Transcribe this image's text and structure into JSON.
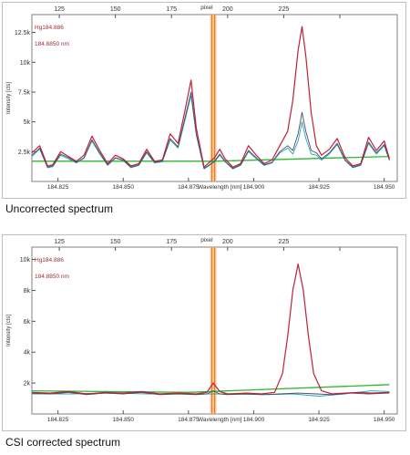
{
  "colors": {
    "background": "#ffffff",
    "frame": "#808080",
    "measured": "#c0203a",
    "reference": "#444e66",
    "reference2": "#2aa3b8",
    "baseline": "#2eb82e",
    "marker_fill": "#f7c090",
    "marker_line": "#e07a18",
    "legend_text": "#a03030"
  },
  "chart_data": [
    {
      "type": "line",
      "caption": "Uncorrected spectrum",
      "xlabel": "Wavelength [nm]",
      "ylabel": "Intensity [cts]",
      "x2label": "pixel",
      "xlim": [
        184.815,
        184.955
      ],
      "ylim": [
        0,
        14000
      ],
      "xticks": [
        184.825,
        184.85,
        184.875,
        184.9,
        184.925,
        184.95
      ],
      "xtick_labels": [
        "184.825",
        "184.850",
        "184.875",
        "184.900",
        "184.925",
        "184.950"
      ],
      "x2ticks_at_wavelength": [
        184.8255,
        184.847,
        184.8685,
        184.89,
        184.9115,
        184.933
      ],
      "x2tick_labels": [
        "125",
        "150",
        "175",
        "200",
        "225",
        ""
      ],
      "yticks": [
        2500,
        5000,
        7500,
        10000,
        12500
      ],
      "ytick_labels": [
        "2.5k",
        "5k",
        "7.5k",
        "10k",
        "12.5k"
      ],
      "legend": [
        "Hg184.886",
        "184.8850 nm"
      ],
      "marker_x": 184.8845,
      "grid": false,
      "series": [
        {
          "style": "measured",
          "x": [
            184.815,
            184.818,
            184.821,
            184.823,
            184.826,
            184.829,
            184.832,
            184.835,
            184.838,
            184.841,
            184.844,
            184.847,
            184.85,
            184.853,
            184.856,
            184.859,
            184.862,
            184.865,
            184.868,
            184.871,
            184.8735,
            184.876,
            184.878,
            184.881,
            184.883,
            184.885,
            184.887,
            184.889,
            184.892,
            184.895,
            184.898,
            184.901,
            184.904,
            184.907,
            184.91,
            184.913,
            184.915,
            184.917,
            184.9185,
            184.92,
            184.922,
            184.924,
            184.926,
            184.929,
            184.932,
            184.935,
            184.938,
            184.941,
            184.944,
            184.947,
            184.95,
            184.952
          ],
          "y": [
            2400,
            3000,
            1300,
            1400,
            2500,
            2100,
            1700,
            2200,
            3800,
            2600,
            1500,
            2200,
            1900,
            1300,
            1500,
            2700,
            1700,
            1800,
            4000,
            3200,
            5800,
            8500,
            4500,
            1200,
            1600,
            2000,
            2700,
            1900,
            1200,
            1500,
            3000,
            2200,
            1500,
            1800,
            3000,
            4200,
            6800,
            11000,
            13000,
            10500,
            5800,
            3000,
            2200,
            2700,
            3600,
            2000,
            1300,
            1500,
            3700,
            2600,
            3400,
            1900
          ]
        },
        {
          "style": "reference",
          "x": [
            184.815,
            184.818,
            184.821,
            184.823,
            184.826,
            184.829,
            184.832,
            184.835,
            184.838,
            184.841,
            184.844,
            184.847,
            184.85,
            184.853,
            184.856,
            184.859,
            184.862,
            184.865,
            184.868,
            184.871,
            184.8735,
            184.876,
            184.878,
            184.881,
            184.883,
            184.885,
            184.887,
            184.889,
            184.892,
            184.895,
            184.898,
            184.901,
            184.904,
            184.907,
            184.91,
            184.913,
            184.915,
            184.917,
            184.9185,
            184.92,
            184.922,
            184.924,
            184.926,
            184.929,
            184.932,
            184.935,
            184.938,
            184.941,
            184.944,
            184.947,
            184.95,
            184.952
          ],
          "y": [
            2200,
            2800,
            1200,
            1300,
            2300,
            2000,
            1600,
            2000,
            3500,
            2400,
            1400,
            2000,
            1800,
            1200,
            1400,
            2500,
            1600,
            1700,
            3600,
            2900,
            5200,
            7500,
            4000,
            1100,
            1400,
            1700,
            2300,
            1700,
            1100,
            1400,
            2600,
            2000,
            1400,
            1600,
            2500,
            3000,
            2600,
            4000,
            5800,
            4200,
            2600,
            2400,
            1900,
            2400,
            3200,
            1800,
            1200,
            1400,
            3300,
            2400,
            3100,
            1800
          ]
        },
        {
          "style": "reference2",
          "x": [
            184.815,
            184.818,
            184.821,
            184.823,
            184.826,
            184.829,
            184.832,
            184.835,
            184.838,
            184.841,
            184.844,
            184.847,
            184.85,
            184.853,
            184.856,
            184.859,
            184.862,
            184.865,
            184.868,
            184.871,
            184.8735,
            184.876,
            184.878,
            184.881,
            184.883,
            184.885,
            184.887,
            184.889,
            184.892,
            184.895,
            184.898,
            184.901,
            184.904,
            184.907,
            184.91,
            184.913,
            184.915,
            184.917,
            184.9185,
            184.92,
            184.922,
            184.924,
            184.926,
            184.929,
            184.932,
            184.935,
            184.938,
            184.941,
            184.944,
            184.947,
            184.95,
            184.952
          ],
          "y": [
            2100,
            2700,
            1150,
            1250,
            2200,
            1900,
            1550,
            1950,
            3400,
            2300,
            1350,
            1950,
            1750,
            1150,
            1350,
            2400,
            1550,
            1650,
            3500,
            2800,
            5000,
            7200,
            3900,
            1050,
            1350,
            1650,
            2200,
            1650,
            1050,
            1350,
            2500,
            1900,
            1350,
            1550,
            2400,
            2800,
            2300,
            3400,
            5000,
            3600,
            2300,
            2200,
            1800,
            2300,
            3100,
            1750,
            1150,
            1350,
            3200,
            2300,
            3000,
            1750
          ]
        },
        {
          "style": "baseline",
          "x": [
            184.815,
            184.885,
            184.952
          ],
          "y": [
            1700,
            1700,
            2100
          ]
        }
      ]
    },
    {
      "type": "line",
      "caption": "CSI corrected spectrum",
      "xlabel": "Wavelength [nm]",
      "ylabel": "Intensity [cts]",
      "x2label": "pixel",
      "xlim": [
        184.815,
        184.955
      ],
      "ylim": [
        0,
        10800
      ],
      "xticks": [
        184.825,
        184.85,
        184.875,
        184.9,
        184.925,
        184.95
      ],
      "xtick_labels": [
        "184.825",
        "184.850",
        "184.875",
        "184.900",
        "184.925",
        "184.950"
      ],
      "x2ticks_at_wavelength": [
        184.8255,
        184.847,
        184.8685,
        184.89,
        184.9115,
        184.933
      ],
      "x2tick_labels": [
        "125",
        "150",
        "175",
        "200",
        "225",
        ""
      ],
      "yticks": [
        2000,
        4000,
        6000,
        8000,
        10000
      ],
      "ytick_labels": [
        "2k",
        "4k",
        "6k",
        "8k",
        "10k"
      ],
      "legend": [
        "Hg184.886",
        "184.8850 nm"
      ],
      "marker_x": 184.8845,
      "grid": false,
      "series": [
        {
          "style": "measured",
          "x": [
            184.815,
            184.822,
            184.829,
            184.836,
            184.843,
            184.85,
            184.857,
            184.864,
            184.871,
            184.878,
            184.882,
            184.8845,
            184.887,
            184.89,
            184.897,
            184.903,
            184.908,
            184.911,
            184.913,
            184.915,
            184.917,
            184.919,
            184.921,
            184.923,
            184.926,
            184.93,
            184.935,
            184.94,
            184.945,
            184.952
          ],
          "y": [
            1400,
            1350,
            1450,
            1300,
            1400,
            1350,
            1450,
            1300,
            1350,
            1300,
            1400,
            2000,
            1450,
            1300,
            1350,
            1300,
            1400,
            2600,
            5000,
            8000,
            9700,
            8000,
            5000,
            2600,
            1500,
            1300,
            1350,
            1400,
            1350,
            1400
          ]
        },
        {
          "style": "reference",
          "x": [
            184.815,
            184.822,
            184.829,
            184.836,
            184.843,
            184.85,
            184.857,
            184.864,
            184.871,
            184.878,
            184.882,
            184.8845,
            184.887,
            184.89,
            184.897,
            184.903,
            184.91,
            184.917,
            184.924,
            184.93,
            184.937,
            184.944,
            184.952
          ],
          "y": [
            1350,
            1300,
            1400,
            1250,
            1350,
            1300,
            1400,
            1250,
            1300,
            1250,
            1300,
            1500,
            1300,
            1250,
            1300,
            1250,
            1300,
            1350,
            1300,
            1250,
            1350,
            1300,
            1350
          ]
        },
        {
          "style": "reference2",
          "x": [
            184.815,
            184.83,
            184.845,
            184.86,
            184.875,
            184.89,
            184.905,
            184.915,
            184.925,
            184.935,
            184.945,
            184.952
          ],
          "y": [
            1300,
            1300,
            1350,
            1300,
            1300,
            1300,
            1250,
            1300,
            1150,
            1300,
            1500,
            1450
          ]
        },
        {
          "style": "baseline",
          "x": [
            184.815,
            184.875,
            184.952
          ],
          "y": [
            1500,
            1400,
            1900
          ]
        }
      ]
    }
  ]
}
